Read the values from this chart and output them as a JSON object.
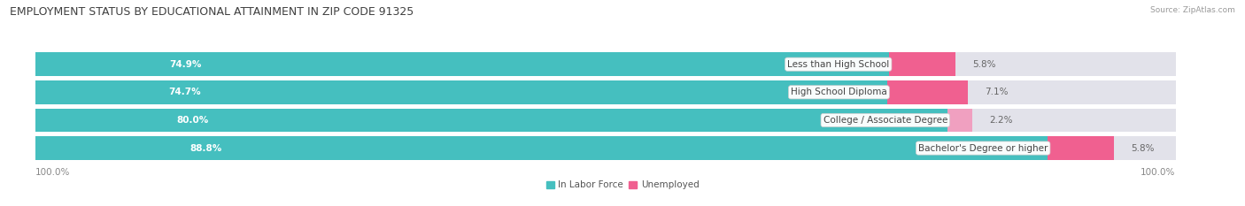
{
  "title": "EMPLOYMENT STATUS BY EDUCATIONAL ATTAINMENT IN ZIP CODE 91325",
  "source": "Source: ZipAtlas.com",
  "categories": [
    "Less than High School",
    "High School Diploma",
    "College / Associate Degree",
    "Bachelor's Degree or higher"
  ],
  "labor_force_pct": [
    74.9,
    74.7,
    80.0,
    88.8
  ],
  "unemployed_pct": [
    5.8,
    7.1,
    2.2,
    5.8
  ],
  "labor_force_color": "#45BFBF",
  "unemployed_color_0": "#F06090",
  "unemployed_color_1": "#F06090",
  "unemployed_color_2": "#F0A0C0",
  "unemployed_color_3": "#F06090",
  "bar_bg_color": "#E2E2EA",
  "background_color": "#FFFFFF",
  "title_fontsize": 9.0,
  "label_fontsize": 7.5,
  "pct_fontsize": 7.5,
  "axis_label_fontsize": 7.5,
  "legend_fontsize": 7.5,
  "x_left_label": "100.0%",
  "x_right_label": "100.0%",
  "total_width": 100.0
}
